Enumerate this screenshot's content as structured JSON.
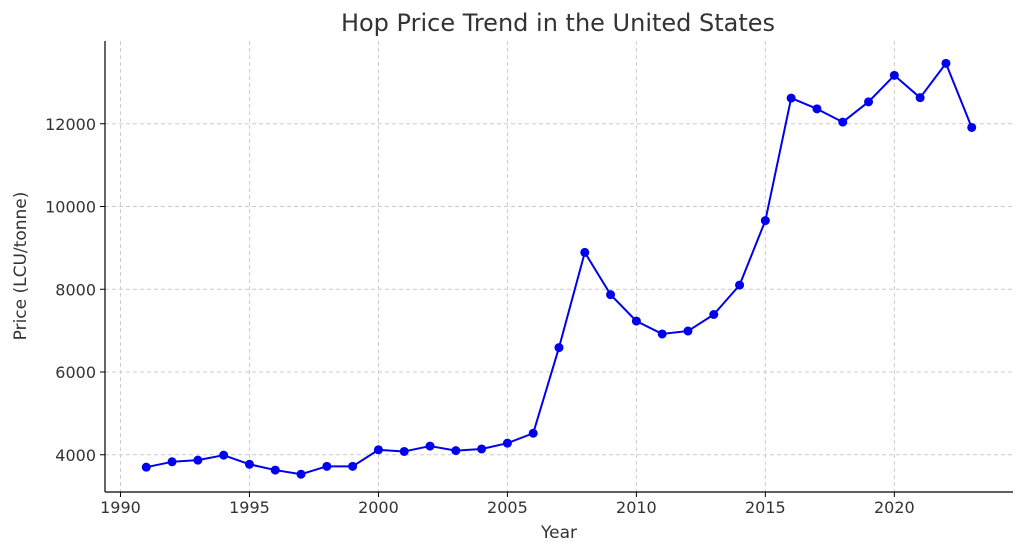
{
  "chart_data": {
    "type": "line",
    "title": "Hop Price Trend in the United States",
    "xlabel": "Year",
    "ylabel": "Price (LCU/tonne)",
    "xlim": [
      1989.4,
      2024.6
    ],
    "ylim": [
      3100,
      14000
    ],
    "xticks": [
      1990,
      1995,
      2000,
      2005,
      2010,
      2015,
      2020
    ],
    "yticks": [
      4000,
      6000,
      8000,
      10000,
      12000
    ],
    "grid": true,
    "series": [
      {
        "color": "#0000ee",
        "x": [
          1991,
          1992,
          1993,
          1994,
          1995,
          1996,
          1997,
          1998,
          1999,
          2000,
          2001,
          2002,
          2003,
          2004,
          2005,
          2006,
          2007,
          2008,
          2009,
          2010,
          2011,
          2012,
          2013,
          2014,
          2015,
          2016,
          2017,
          2018,
          2019,
          2020,
          2021,
          2022,
          2023
        ],
        "y": [
          3700,
          3830,
          3870,
          3990,
          3770,
          3630,
          3530,
          3720,
          3720,
          4120,
          4080,
          4210,
          4100,
          4140,
          4280,
          4520,
          6590,
          8890,
          7870,
          7230,
          6920,
          6990,
          7390,
          8100,
          9660,
          12620,
          12360,
          12040,
          12530,
          13170,
          12630,
          13460,
          11910
        ]
      }
    ]
  }
}
